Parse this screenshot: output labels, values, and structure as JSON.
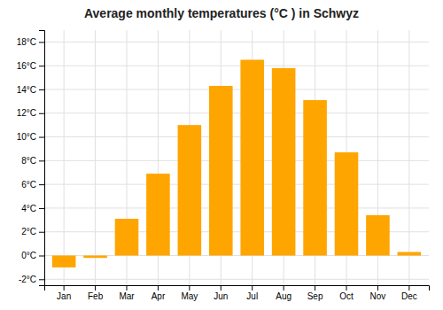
{
  "chart_data": {
    "type": "bar",
    "title": "Average monthly temperatures (°C ) in Schwyz",
    "categories": [
      "Jan",
      "Feb",
      "Mar",
      "Apr",
      "May",
      "Jun",
      "Jul",
      "Aug",
      "Sep",
      "Oct",
      "Nov",
      "Dec"
    ],
    "values": [
      -1.0,
      -0.2,
      3.1,
      6.9,
      11.0,
      14.3,
      16.5,
      15.8,
      13.1,
      8.7,
      3.4,
      0.3
    ],
    "color": "#FFA500",
    "ylim": [
      -2.5,
      19.0
    ],
    "yticks": [
      {
        "value": -2,
        "label": "-2°C"
      },
      {
        "value": 0,
        "label": "0°C"
      },
      {
        "value": 2,
        "label": "2°C"
      },
      {
        "value": 4,
        "label": "4°C"
      },
      {
        "value": 6,
        "label": "6°C"
      },
      {
        "value": 8,
        "label": "8°C"
      },
      {
        "value": 10,
        "label": "10°C"
      },
      {
        "value": 12,
        "label": "12°C"
      },
      {
        "value": 14,
        "label": "14°C"
      },
      {
        "value": 16,
        "label": "16°C"
      },
      {
        "value": 18,
        "label": "18°C"
      }
    ],
    "grid": true
  }
}
